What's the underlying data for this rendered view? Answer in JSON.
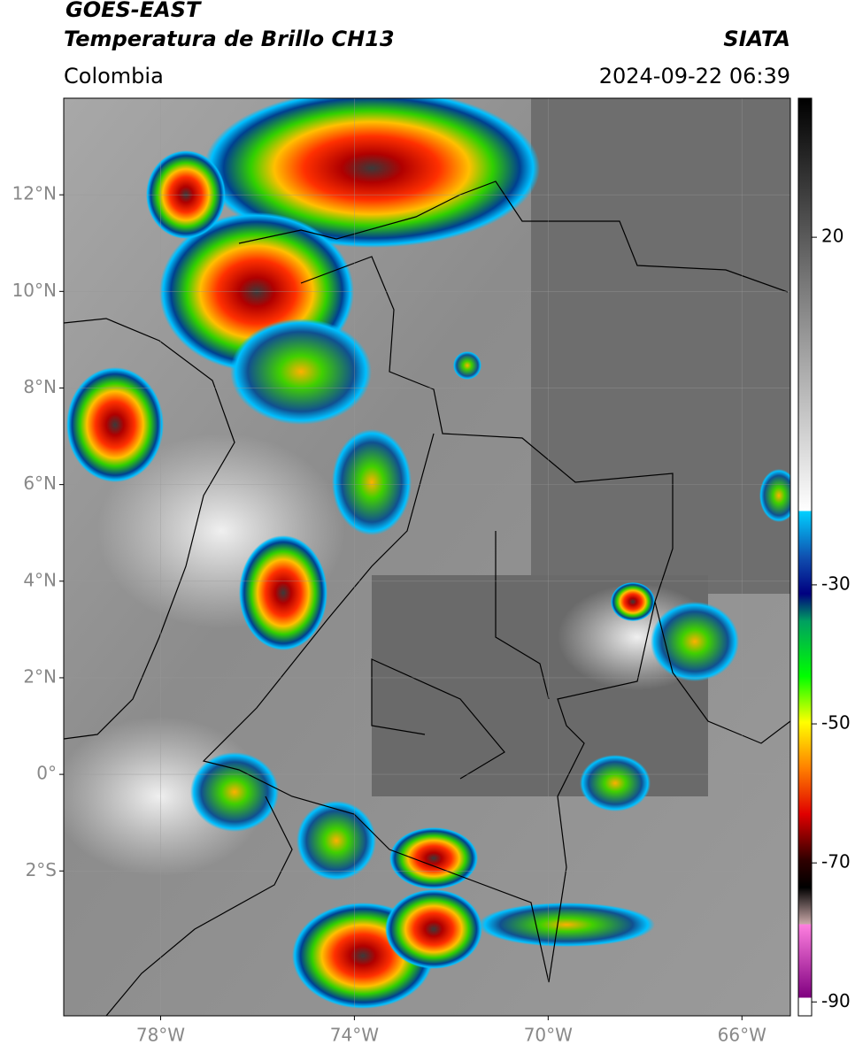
{
  "header": {
    "satellite": "GOES-EAST",
    "product": "Temperatura de Brillo CH13",
    "source": "SIATA",
    "region": "Colombia",
    "datetime": "2024-09-22 06:39"
  },
  "map": {
    "lat_range": [
      -5,
      14
    ],
    "lon_range": [
      -80,
      -65
    ],
    "lat_ticks": [
      {
        "value": 12,
        "label": "12°N"
      },
      {
        "value": 10,
        "label": "10°N"
      },
      {
        "value": 8,
        "label": "8°N"
      },
      {
        "value": 6,
        "label": "6°N"
      },
      {
        "value": 4,
        "label": "4°N"
      },
      {
        "value": 2,
        "label": "2°N"
      },
      {
        "value": 0,
        "label": "0°"
      },
      {
        "value": -2,
        "label": "2°S"
      }
    ],
    "lon_ticks": [
      {
        "value": -78,
        "label": "78°W"
      },
      {
        "value": -74,
        "label": "74°W"
      },
      {
        "value": -70,
        "label": "70°W"
      },
      {
        "value": -66,
        "label": "66°W"
      }
    ]
  },
  "colorbar": {
    "range": [
      -92,
      40
    ],
    "ticks": [
      20,
      -30,
      -50,
      -70,
      -90
    ]
  }
}
